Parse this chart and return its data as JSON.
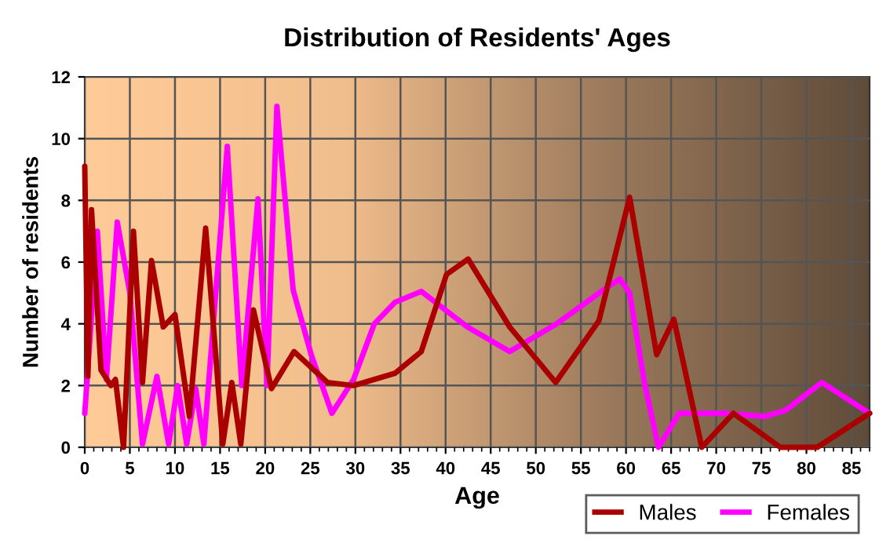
{
  "chart_data": {
    "type": "line",
    "title": "Distribution of Residents' Ages",
    "xlabel": "Age",
    "ylabel": "Number of residents",
    "xlim": [
      0,
      87
    ],
    "ylim": [
      0,
      12
    ],
    "xticks": [
      0,
      5,
      10,
      15,
      20,
      25,
      30,
      35,
      40,
      45,
      50,
      55,
      60,
      65,
      70,
      75,
      80,
      85
    ],
    "yticks": [
      0,
      2,
      4,
      6,
      8,
      10,
      12
    ],
    "grid": true,
    "legend": "bottom right",
    "marker": "none",
    "line_style": "solid",
    "series": [
      {
        "name": "Males",
        "color": "#aa0000",
        "x": [
          0,
          0.35,
          0.75,
          1.8,
          2.9,
          3.4,
          4.3,
          5.4,
          6.4,
          7.4,
          8.7,
          10.0,
          11.6,
          13.4,
          15.3,
          16.3,
          17.3,
          18.7,
          20.7,
          23.2,
          26.9,
          29.8,
          34.4,
          37.3,
          40.1,
          42.5,
          47.1,
          52.2,
          57.0,
          60.4,
          63.4,
          65.3,
          68.4,
          71.9,
          77.1,
          81.2,
          87
        ],
        "values": [
          9.1,
          2.3,
          7.7,
          2.5,
          2.0,
          2.2,
          0,
          7.0,
          2.1,
          6.05,
          3.9,
          4.3,
          1.0,
          7.1,
          0.1,
          2.1,
          0.1,
          4.45,
          1.9,
          3.1,
          2.1,
          2.0,
          2.4,
          3.1,
          5.6,
          6.1,
          3.9,
          2.1,
          4.1,
          8.1,
          3.0,
          4.15,
          0,
          1.1,
          0,
          0,
          1.1
        ]
      },
      {
        "name": "Females",
        "color": "#ff00ff",
        "x": [
          0,
          1.4,
          2.4,
          3.6,
          5.0,
          6.4,
          8.0,
          9.3,
          10.3,
          11.3,
          12.3,
          13.2,
          15.8,
          17.4,
          19.2,
          20.2,
          21.3,
          23.1,
          25.1,
          27.4,
          29.8,
          32.1,
          34.4,
          37.3,
          42.4,
          47.1,
          52.3,
          57.5,
          59.3,
          60.4,
          62.1,
          63.6,
          65.9,
          70.8,
          75.4,
          77.7,
          81.7,
          87
        ],
        "values": [
          1.1,
          7.0,
          2.2,
          7.3,
          5.0,
          0.1,
          2.3,
          0.1,
          2.0,
          0.1,
          1.9,
          0.1,
          9.75,
          2.0,
          8.05,
          2.0,
          11.05,
          5.1,
          3.0,
          1.1,
          2.2,
          4.0,
          4.7,
          5.05,
          3.9,
          3.1,
          4.0,
          5.1,
          5.45,
          5.0,
          2.0,
          0,
          1.1,
          1.1,
          1.0,
          1.2,
          2.1,
          1.1
        ]
      }
    ]
  }
}
